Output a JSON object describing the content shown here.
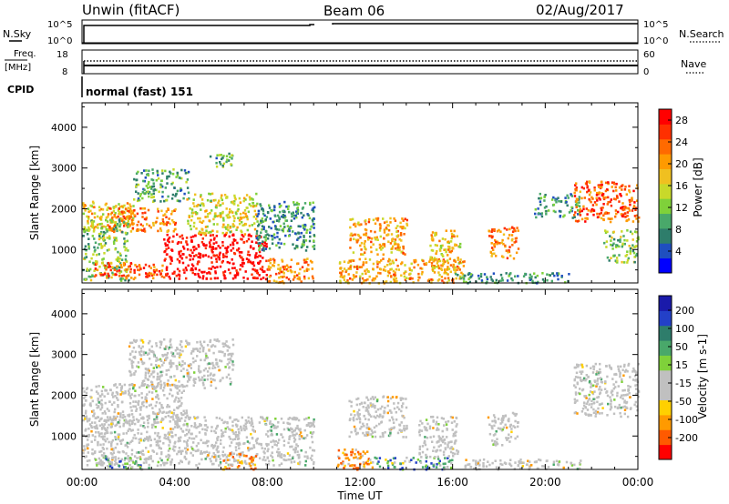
{
  "header": {
    "station": "Unwin (fitACF)",
    "beam": "Beam 06",
    "date": "02/Aug/2017"
  },
  "strip_panels": {
    "nsky": {
      "label": "N.Sky",
      "ticks": [
        "10^5",
        "10^0"
      ]
    },
    "nsearch": {
      "label": "N.Search",
      "ticks": [
        "10^5",
        "10^0"
      ]
    },
    "freq": {
      "label_line1": "Freq.",
      "label_line2": "[MHz]",
      "ticks": [
        "18",
        "8"
      ],
      "value": 11
    },
    "nave": {
      "label": "Nave",
      "ticks": [
        "60",
        "0"
      ]
    },
    "cpid": {
      "label": "CPID",
      "text": "normal (fast) 151"
    }
  },
  "time_axis": {
    "label": "Time UT",
    "ticks": [
      "00:00",
      "04:00",
      "08:00",
      "12:00",
      "16:00",
      "20:00",
      "00:00"
    ]
  },
  "chart_data": [
    {
      "type": "heatmap",
      "title": "",
      "ylabel": "Slant Range [km]",
      "xlabel": "Time UT",
      "ylim": [
        180,
        4600
      ],
      "xlim_hours": [
        0,
        24
      ],
      "yticks": [
        "1000",
        "2000",
        "3000",
        "4000"
      ],
      "colorbar": {
        "label": "Power [dB]",
        "ticks": [
          "4",
          "8",
          "12",
          "16",
          "20",
          "24",
          "28"
        ],
        "range": [
          0,
          30
        ],
        "colors": [
          "#0000ff",
          "#1f4fbf",
          "#2e7d6b",
          "#49a86a",
          "#7fd13a",
          "#c8d92a",
          "#f0c020",
          "#ff9a00",
          "#ff6a00",
          "#ff3000",
          "#ff0000"
        ]
      },
      "regions": [
        {
          "t": [
            0.0,
            2.2
          ],
          "r": [
            1500,
            2200
          ],
          "power": 18
        },
        {
          "t": [
            1.0,
            4.0
          ],
          "r": [
            1450,
            2050
          ],
          "power": 22
        },
        {
          "t": [
            2.2,
            4.6
          ],
          "r": [
            2200,
            3000
          ],
          "power": 10
        },
        {
          "t": [
            5.5,
            6.5
          ],
          "r": [
            3050,
            3400
          ],
          "power": 10
        },
        {
          "t": [
            0.0,
            2.0
          ],
          "r": [
            250,
            1800
          ],
          "power": 12
        },
        {
          "t": [
            0.5,
            3.5
          ],
          "r": [
            300,
            700
          ],
          "power": 24
        },
        {
          "t": [
            3.5,
            8.0
          ],
          "r": [
            300,
            1400
          ],
          "power": 30
        },
        {
          "t": [
            4.5,
            7.5
          ],
          "r": [
            1400,
            2400
          ],
          "power": 16
        },
        {
          "t": [
            8.0,
            10.0
          ],
          "r": [
            200,
            800
          ],
          "power": 22
        },
        {
          "t": [
            7.5,
            10.0
          ],
          "r": [
            1000,
            2200
          ],
          "power": 8
        },
        {
          "t": [
            11.5,
            14.0
          ],
          "r": [
            900,
            1800
          ],
          "power": 20
        },
        {
          "t": [
            11.0,
            16.5
          ],
          "r": [
            200,
            800
          ],
          "power": 20
        },
        {
          "t": [
            15.0,
            16.3
          ],
          "r": [
            500,
            1500
          ],
          "power": 18
        },
        {
          "t": [
            16.0,
            21.0
          ],
          "r": [
            200,
            450
          ],
          "power": 8
        },
        {
          "t": [
            17.5,
            18.8
          ],
          "r": [
            800,
            1600
          ],
          "power": 22
        },
        {
          "t": [
            19.5,
            21.5
          ],
          "r": [
            1800,
            2400
          ],
          "power": 8
        },
        {
          "t": [
            21.2,
            24.0
          ],
          "r": [
            1700,
            2700
          ],
          "power": 24
        },
        {
          "t": [
            22.5,
            24.0
          ],
          "r": [
            700,
            1500
          ],
          "power": 12
        }
      ]
    },
    {
      "type": "heatmap",
      "title": "",
      "ylabel": "Slant Range [km]",
      "xlabel": "Time UT",
      "ylim": [
        180,
        4600
      ],
      "xlim_hours": [
        0,
        24
      ],
      "yticks": [
        "1000",
        "2000",
        "3000",
        "4000"
      ],
      "colorbar": {
        "label": "Velocity [m s-1]",
        "ticks": [
          "200",
          "100",
          "50",
          "15",
          "-15",
          "-50",
          "-100",
          "-200"
        ],
        "colors": [
          "#1a1aaa",
          "#2340c8",
          "#2e7d6b",
          "#49a86a",
          "#7fd13a",
          "#c0c0c0",
          "#c0c0c0",
          "#ffd000",
          "#ff9a00",
          "#ff5a00",
          "#ff0000"
        ]
      },
      "regions": [
        {
          "t": [
            0.0,
            4.5
          ],
          "r": [
            1400,
            2300
          ],
          "velocity": 0
        },
        {
          "t": [
            2.0,
            6.5
          ],
          "r": [
            2200,
            3400
          ],
          "velocity": 0
        },
        {
          "t": [
            0.0,
            10.0
          ],
          "r": [
            300,
            1500
          ],
          "velocity": 0
        },
        {
          "t": [
            0.5,
            3.0
          ],
          "r": [
            200,
            500
          ],
          "velocity": 40
        },
        {
          "t": [
            6.0,
            7.5
          ],
          "r": [
            200,
            600
          ],
          "velocity": -50
        },
        {
          "t": [
            11.0,
            12.5
          ],
          "r": [
            200,
            700
          ],
          "velocity": -60
        },
        {
          "t": [
            12.5,
            16.0
          ],
          "r": [
            200,
            500
          ],
          "velocity": 40
        },
        {
          "t": [
            11.5,
            14.0
          ],
          "r": [
            1000,
            2000
          ],
          "velocity": 0
        },
        {
          "t": [
            14.5,
            16.2
          ],
          "r": [
            500,
            1500
          ],
          "velocity": 0
        },
        {
          "t": [
            17.5,
            18.8
          ],
          "r": [
            800,
            1600
          ],
          "velocity": 0
        },
        {
          "t": [
            21.2,
            24.0
          ],
          "r": [
            1500,
            2800
          ],
          "velocity": 0
        },
        {
          "t": [
            16.5,
            21.5
          ],
          "r": [
            200,
            450
          ],
          "velocity": -10
        }
      ]
    }
  ]
}
